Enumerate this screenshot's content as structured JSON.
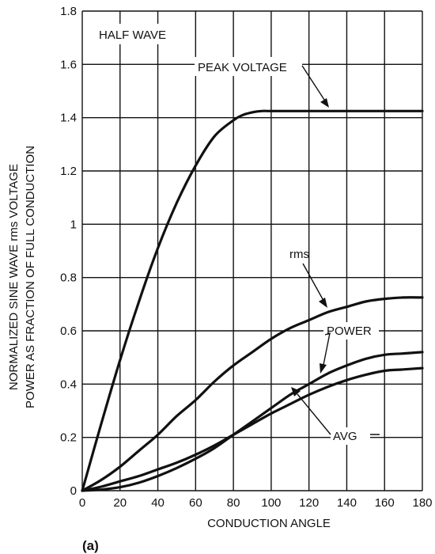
{
  "chart_data": {
    "type": "line",
    "title": "",
    "xlabel": "CONDUCTION ANGLE",
    "ylabel_lines": [
      "NORMALIZED SINE WAVE rms VOLTAGE",
      "POWER AS FRACTION OF FULL CONDUCTION"
    ],
    "xlim": [
      0,
      180
    ],
    "ylim": [
      0,
      1.8
    ],
    "x_ticks": [
      0,
      20,
      40,
      60,
      80,
      100,
      120,
      140,
      160,
      180
    ],
    "y_ticks": [
      0,
      0.2,
      0.4,
      0.6,
      0.8,
      1,
      1.2,
      1.4,
      1.6,
      1.8
    ],
    "y_tick_labels": [
      "0",
      "0.2",
      "0.4",
      "0.6",
      "0.8",
      "1",
      "1.2",
      "1.4",
      "1.6",
      "1.8"
    ],
    "grid": true,
    "panel_label": "(a)",
    "inset_label": "HALF WAVE",
    "series": [
      {
        "name": "PEAK VOLTAGE",
        "x": [
          0,
          10,
          20,
          30,
          40,
          50,
          60,
          70,
          80,
          85,
          90,
          95,
          100,
          120,
          140,
          160,
          180
        ],
        "values": [
          0,
          0.25,
          0.49,
          0.71,
          0.91,
          1.08,
          1.22,
          1.33,
          1.39,
          1.41,
          1.42,
          1.425,
          1.425,
          1.425,
          1.425,
          1.425,
          1.425
        ]
      },
      {
        "name": "rms",
        "x": [
          0,
          10,
          20,
          30,
          40,
          50,
          60,
          70,
          80,
          90,
          100,
          110,
          120,
          130,
          140,
          150,
          160,
          170,
          180
        ],
        "values": [
          0,
          0.04,
          0.09,
          0.15,
          0.21,
          0.28,
          0.34,
          0.41,
          0.47,
          0.52,
          0.57,
          0.61,
          0.64,
          0.67,
          0.69,
          0.71,
          0.72,
          0.725,
          0.725
        ]
      },
      {
        "name": "POWER",
        "x": [
          0,
          10,
          20,
          30,
          40,
          50,
          60,
          70,
          80,
          90,
          100,
          110,
          120,
          130,
          140,
          150,
          160,
          170,
          180
        ],
        "values": [
          0,
          0.004,
          0.013,
          0.03,
          0.055,
          0.085,
          0.12,
          0.16,
          0.21,
          0.26,
          0.31,
          0.36,
          0.4,
          0.44,
          0.47,
          0.495,
          0.51,
          0.515,
          0.52
        ]
      },
      {
        "name": "AVG",
        "x": [
          0,
          10,
          20,
          30,
          40,
          50,
          60,
          70,
          80,
          90,
          100,
          110,
          120,
          130,
          140,
          150,
          160,
          170,
          180
        ],
        "values": [
          0,
          0.015,
          0.035,
          0.055,
          0.08,
          0.105,
          0.135,
          0.17,
          0.21,
          0.25,
          0.29,
          0.325,
          0.36,
          0.39,
          0.415,
          0.435,
          0.45,
          0.455,
          0.46
        ]
      }
    ]
  }
}
